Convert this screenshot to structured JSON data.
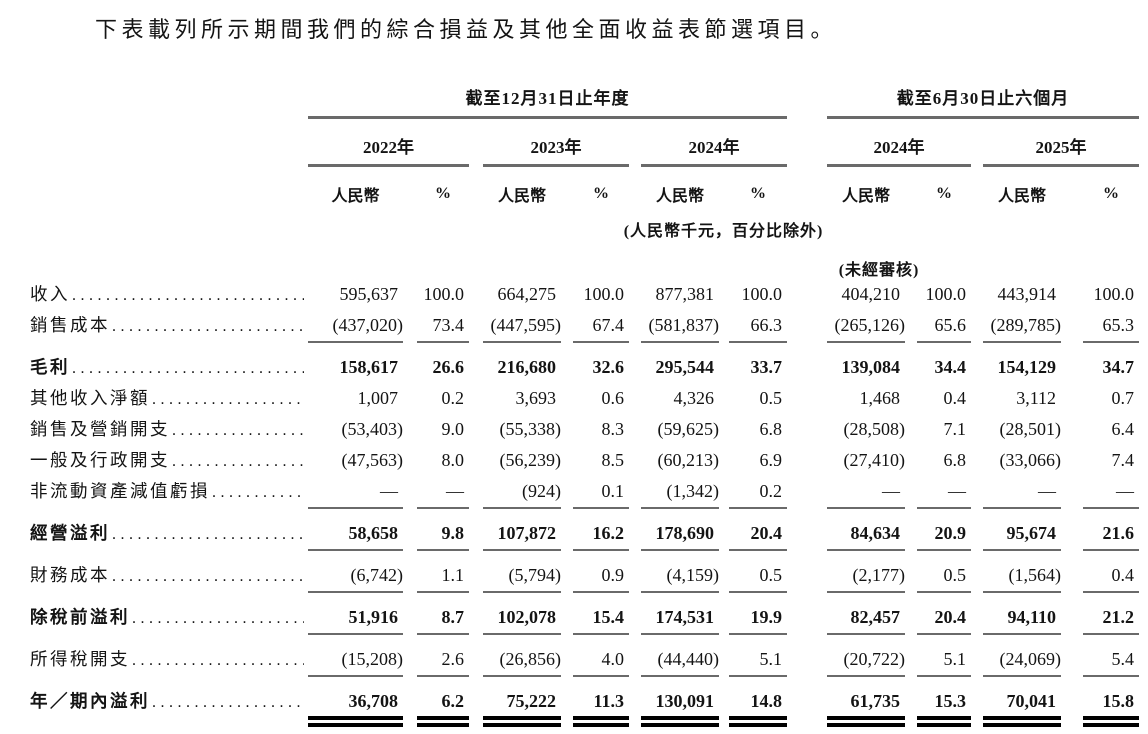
{
  "intro": "下表載列所示期間我們的綜合損益及其他全面收益表節選項目。",
  "table": {
    "groups": [
      "截至12月31日止年度",
      "截至6月30日止六個月"
    ],
    "years": [
      "2022年",
      "2023年",
      "2024年",
      "2024年",
      "2025年"
    ],
    "units": {
      "currency": "人民幣",
      "percent": "%"
    },
    "unit_note": "(人民幣千元，百分比除外)",
    "unaudited_note": "(未經審核)",
    "rows": [
      {
        "label": "收入",
        "bold": false,
        "rule": "none",
        "gap": false,
        "values": [
          "595,637",
          "100.0",
          "664,275",
          "100.0",
          "877,381",
          "100.0",
          "404,210",
          "100.0",
          "443,914",
          "100.0"
        ]
      },
      {
        "label": "銷售成本",
        "bold": false,
        "rule": "single",
        "gap": false,
        "values": [
          "(437,020)",
          "73.4",
          "(447,595)",
          "67.4",
          "(581,837)",
          "66.3",
          "(265,126)",
          "65.6",
          "(289,785)",
          "65.3"
        ]
      },
      {
        "label": "毛利",
        "bold": true,
        "rule": "none",
        "gap": true,
        "values": [
          "158,617",
          "26.6",
          "216,680",
          "32.6",
          "295,544",
          "33.7",
          "139,084",
          "34.4",
          "154,129",
          "34.7"
        ]
      },
      {
        "label": "其他收入淨額",
        "bold": false,
        "rule": "none",
        "gap": false,
        "values": [
          "1,007",
          "0.2",
          "3,693",
          "0.6",
          "4,326",
          "0.5",
          "1,468",
          "0.4",
          "3,112",
          "0.7"
        ]
      },
      {
        "label": "銷售及營銷開支",
        "bold": false,
        "rule": "none",
        "gap": false,
        "values": [
          "(53,403)",
          "9.0",
          "(55,338)",
          "8.3",
          "(59,625)",
          "6.8",
          "(28,508)",
          "7.1",
          "(28,501)",
          "6.4"
        ]
      },
      {
        "label": "一般及行政開支",
        "bold": false,
        "rule": "none",
        "gap": false,
        "values": [
          "(47,563)",
          "8.0",
          "(56,239)",
          "8.5",
          "(60,213)",
          "6.9",
          "(27,410)",
          "6.8",
          "(33,066)",
          "7.4"
        ]
      },
      {
        "label": "非流動資產減值虧損",
        "bold": false,
        "rule": "single",
        "gap": false,
        "values": [
          "—",
          "—",
          "(924)",
          "0.1",
          "(1,342)",
          "0.2",
          "—",
          "—",
          "—",
          "—"
        ]
      },
      {
        "label": "經營溢利",
        "bold": true,
        "rule": "single",
        "gap": true,
        "values": [
          "58,658",
          "9.8",
          "107,872",
          "16.2",
          "178,690",
          "20.4",
          "84,634",
          "20.9",
          "95,674",
          "21.6"
        ]
      },
      {
        "label": "財務成本",
        "bold": false,
        "rule": "single",
        "gap": true,
        "values": [
          "(6,742)",
          "1.1",
          "(5,794)",
          "0.9",
          "(4,159)",
          "0.5",
          "(2,177)",
          "0.5",
          "(1,564)",
          "0.4"
        ]
      },
      {
        "label": "除稅前溢利",
        "bold": true,
        "rule": "single",
        "gap": true,
        "values": [
          "51,916",
          "8.7",
          "102,078",
          "15.4",
          "174,531",
          "19.9",
          "82,457",
          "20.4",
          "94,110",
          "21.2"
        ]
      },
      {
        "label": "所得稅開支",
        "bold": false,
        "rule": "single",
        "gap": true,
        "values": [
          "(15,208)",
          "2.6",
          "(26,856)",
          "4.0",
          "(44,440)",
          "5.1",
          "(20,722)",
          "5.1",
          "(24,069)",
          "5.4"
        ]
      },
      {
        "label": "年／期內溢利",
        "bold": true,
        "rule": "double",
        "gap": true,
        "values": [
          "36,708",
          "6.2",
          "75,222",
          "11.3",
          "130,091",
          "14.8",
          "61,735",
          "15.3",
          "70,041",
          "15.8"
        ]
      }
    ]
  }
}
